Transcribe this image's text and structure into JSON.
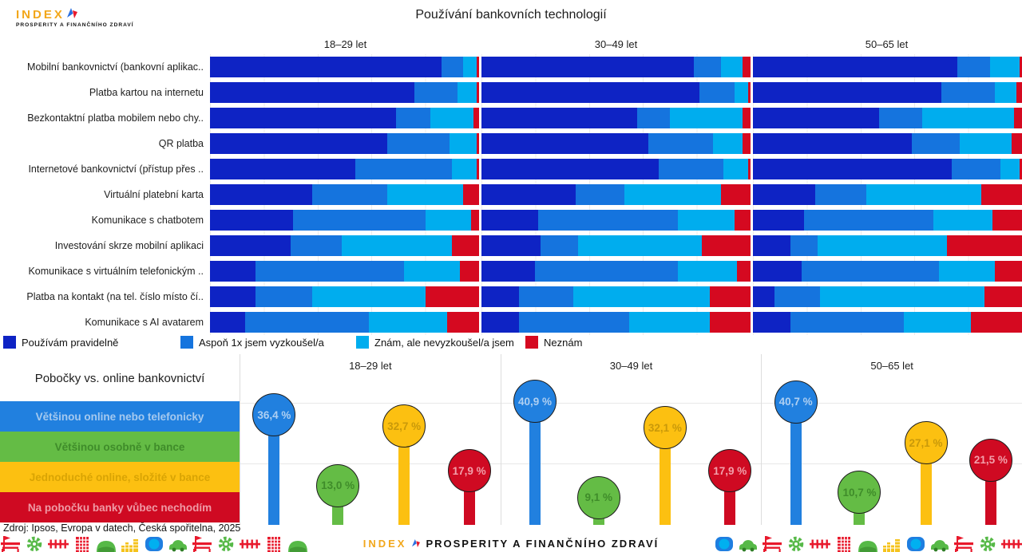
{
  "logo": {
    "name": "INDEX",
    "subtitle": "PROSPERITY A FINANČNÍHO ZDRAVÍ"
  },
  "footer": {
    "source": "Zdroj: Ipsos, Evropa v datech, Česká spořitelna, 2025",
    "icons_left": [
      "bench-flag-icon",
      "gear-icon",
      "crosses-icon",
      "building-icon",
      "hill-icon",
      "coins-icon",
      "coin-icon",
      "car-icon",
      "bench-flag-icon",
      "gear-icon",
      "crosses-icon",
      "building-icon",
      "hill-icon"
    ],
    "icons_right": [
      "coin-icon",
      "car-icon",
      "bench-flag-icon",
      "gear-icon",
      "crosses-icon",
      "building-icon",
      "hill-icon",
      "coins-icon",
      "coin-icon",
      "car-icon",
      "bench-flag-icon",
      "gear-icon",
      "crosses-icon"
    ]
  },
  "chart_data": [
    {
      "type": "bar",
      "subtype": "horizontal-stacked-100pct",
      "title": "Používání bankovních technologií",
      "panels": [
        "18–29 let",
        "30–49 let",
        "50–65 let"
      ],
      "categories": [
        "Mobilní bankovnictví (bankovní aplikac..",
        "Platba kartou na internetu",
        "Bezkontaktní platba mobilem nebo chy..",
        "QR platba",
        "Internetové bankovnictví (přístup přes ..",
        "Virtuální platební karta",
        "Komunikace s chatbotem",
        "Investování skrze mobilní aplikaci",
        "Komunikace s virtuálním telefonickým ..",
        "Platba na kontakt (na tel. číslo místo čí..",
        "Komunikace s AI avatarem"
      ],
      "legend": [
        "Používám pravidelně",
        "Aspoň 1x jsem vyzkoušel/a",
        "Znám, ale nevyzkoušel/a jsem",
        "Neznám"
      ],
      "colors": [
        "#0e23c4",
        "#1574de",
        "#00adee",
        "#d50920"
      ],
      "unit": "%",
      "values": [
        [
          [
            86,
            8,
            5,
            1
          ],
          [
            76,
            16,
            7,
            1
          ],
          [
            69,
            13,
            16,
            2
          ],
          [
            66,
            23,
            10,
            1
          ],
          [
            54,
            36,
            9,
            1
          ],
          [
            38,
            28,
            28,
            6
          ],
          [
            31,
            49,
            17,
            3
          ],
          [
            30,
            19,
            41,
            10
          ],
          [
            17,
            55,
            21,
            7
          ],
          [
            17,
            21,
            42,
            20
          ],
          [
            13,
            46,
            29,
            12
          ]
        ],
        [
          [
            79,
            10,
            8,
            3
          ],
          [
            81,
            13,
            5,
            1
          ],
          [
            58,
            12,
            27,
            3
          ],
          [
            62,
            24,
            11,
            3
          ],
          [
            66,
            24,
            9,
            1
          ],
          [
            35,
            18,
            36,
            11
          ],
          [
            21,
            52,
            21,
            6
          ],
          [
            22,
            14,
            46,
            18
          ],
          [
            20,
            53,
            22,
            5
          ],
          [
            14,
            20,
            51,
            15
          ],
          [
            14,
            41,
            30,
            15
          ]
        ],
        [
          [
            76,
            12,
            11,
            1
          ],
          [
            70,
            20,
            8,
            2
          ],
          [
            47,
            16,
            34,
            3
          ],
          [
            59,
            18,
            19,
            4
          ],
          [
            74,
            18,
            7,
            1
          ],
          [
            23,
            19,
            43,
            15
          ],
          [
            19,
            48,
            22,
            11
          ],
          [
            14,
            10,
            48,
            28
          ],
          [
            18,
            51,
            21,
            10
          ],
          [
            8,
            17,
            61,
            14
          ],
          [
            14,
            42,
            25,
            19
          ]
        ]
      ],
      "gridlines_pct": [
        20,
        40,
        60,
        80
      ],
      "legend_position": "bottom"
    },
    {
      "type": "lollipop",
      "title": "Pobočky vs. online bankovnictví",
      "panels": [
        "18–29 let",
        "30–49 let",
        "50–65 let"
      ],
      "categories": [
        "Většinou online nebo telefonicky",
        "Většinou osobně v bance",
        "Jednoduché online, složité v bance",
        "Na pobočku banky vůbec nechodím"
      ],
      "colors": [
        "#2180df",
        "#64bc45",
        "#fcc011",
        "#cf0a22"
      ],
      "category_text_colors": [
        "#a5c9ef",
        "#3f8c2a",
        "#d9a404",
        "#ef9aa5"
      ],
      "value_label_colors": [
        "#aecff2",
        "#3f8c2a",
        "#c9990a",
        "#f2a0ab"
      ],
      "unit": "%",
      "values": [
        [
          36.4,
          13.0,
          32.7,
          17.9
        ],
        [
          40.9,
          9.1,
          32.1,
          17.9
        ],
        [
          40.7,
          10.7,
          27.1,
          21.5
        ]
      ],
      "value_labels": [
        [
          "36,4 %",
          "13,0 %",
          "32,7 %",
          "17,9 %"
        ],
        [
          "40,9 %",
          "9,1 %",
          "32,1 %",
          "17,9 %"
        ],
        [
          "40,7 %",
          "10,7 %",
          "27,1 %",
          "21,5 %"
        ]
      ],
      "ylim": [
        0,
        45
      ],
      "gridlines_pct": [
        20,
        40
      ]
    }
  ]
}
